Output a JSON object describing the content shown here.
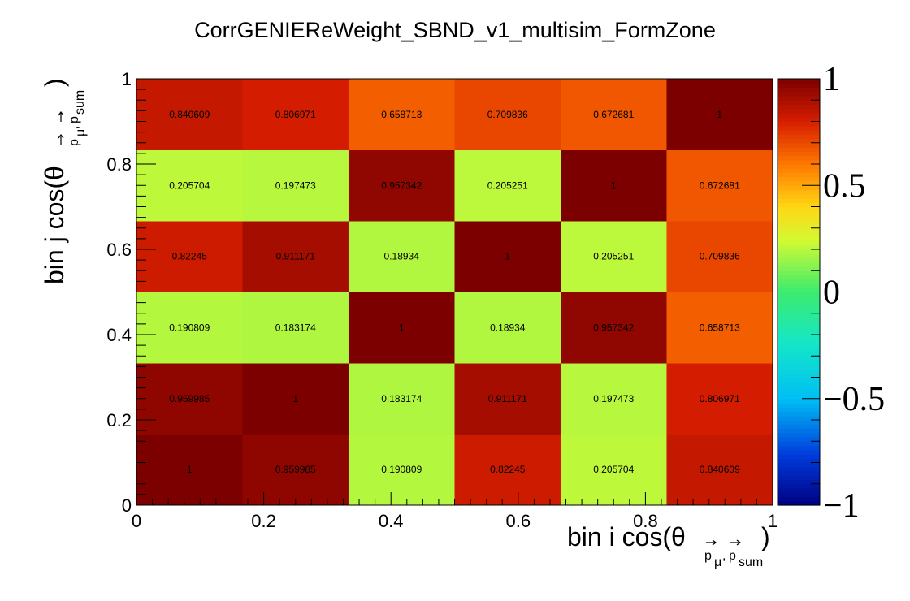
{
  "chart_data": {
    "type": "heatmap",
    "title": "CorrGENIEReWeight_SBND_v1_multisim_FormZone",
    "xlabel": {
      "prefix": "bin i cos(",
      "theta": "θ",
      "sub": "p",
      "mu": "μ",
      "comma": ",",
      "sub2": "p",
      "sum": "sum",
      "close": ")"
    },
    "ylabel": {
      "prefix": "bin j cos(",
      "theta": "θ",
      "sub": "p",
      "mu": "μ",
      "comma": ",",
      "sub2": "p",
      "sum": "sum",
      "close": ")"
    },
    "xlim": [
      0,
      1
    ],
    "ylim": [
      0,
      1
    ],
    "zlim": [
      -1,
      1
    ],
    "x_edges": [
      0,
      0.1667,
      0.3333,
      0.5,
      0.6667,
      0.8333,
      1
    ],
    "y_edges": [
      0,
      0.1667,
      0.3333,
      0.5,
      0.6667,
      0.8333,
      1
    ],
    "x_ticks": [
      "0",
      "0.2",
      "0.4",
      "0.6",
      "0.8",
      "1"
    ],
    "y_ticks": [
      "0",
      "0.2",
      "0.4",
      "0.6",
      "0.8",
      "1"
    ],
    "z_ticks": [
      "−1",
      "−0.5",
      "0",
      "0.5",
      "1"
    ],
    "colormap": "rainbow",
    "values": [
      [
        1,
        0.959985,
        0.190809,
        0.82245,
        0.205704,
        0.840609
      ],
      [
        0.959985,
        1,
        0.183174,
        0.911171,
        0.197473,
        0.806971
      ],
      [
        0.190809,
        0.183174,
        1,
        0.18934,
        0.957342,
        0.658713
      ],
      [
        0.82245,
        0.911171,
        0.18934,
        1,
        0.205251,
        0.709836
      ],
      [
        0.205704,
        0.197473,
        0.957342,
        0.205251,
        1,
        0.672681
      ],
      [
        0.840609,
        0.806971,
        0.658713,
        0.709836,
        0.672681,
        1
      ]
    ],
    "value_labels": [
      [
        "1",
        "0.959985",
        "0.190809",
        "0.82245",
        "0.205704",
        "0.840609"
      ],
      [
        "0.959985",
        "1",
        "0.183174",
        "0.911171",
        "0.197473",
        "0.806971"
      ],
      [
        "0.190809",
        "0.183174",
        "1",
        "0.18934",
        "0.957342",
        "0.658713"
      ],
      [
        "0.82245",
        "0.911171",
        "0.18934",
        "1",
        "0.205251",
        "0.709836"
      ],
      [
        "0.205704",
        "0.197473",
        "0.957342",
        "0.205251",
        "1",
        "0.672681"
      ],
      [
        "0.840609",
        "0.806971",
        "0.658713",
        "0.709836",
        "0.672681",
        "1"
      ]
    ]
  }
}
